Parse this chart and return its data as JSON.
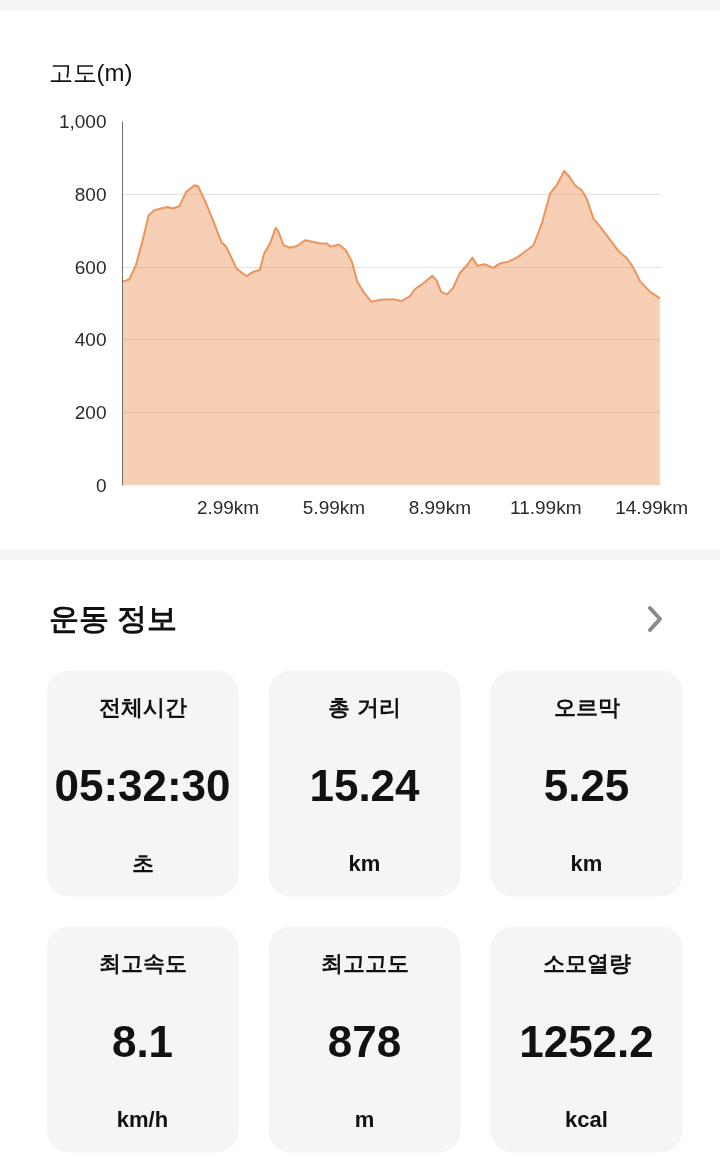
{
  "chart_data": [
    {
      "type": "area",
      "title": "고도(m)",
      "x": [
        0,
        0.19,
        0.38,
        0.57,
        0.74,
        0.9,
        1.09,
        1.28,
        1.42,
        1.61,
        1.8,
        2.04,
        2.14,
        2.33,
        2.56,
        2.8,
        2.94,
        3.23,
        3.51,
        3.7,
        3.89,
        4.01,
        4.18,
        4.34,
        4.42,
        4.56,
        4.75,
        4.94,
        5.18,
        5.41,
        5.6,
        5.79,
        5.89,
        6.13,
        6.32,
        6.5,
        6.65,
        6.84,
        7.05,
        7.28,
        7.66,
        7.9,
        8.13,
        8.28,
        8.51,
        8.78,
        8.89,
        9.03,
        9.19,
        9.36,
        9.55,
        9.74,
        9.91,
        10.05,
        10.26,
        10.5,
        10.69,
        10.93,
        11.17,
        11.4,
        11.64,
        11.88,
        12.11,
        12.3,
        12.51,
        12.63,
        12.82,
        13.01,
        13.15,
        13.34,
        13.53,
        13.82,
        14.05,
        14.29,
        14.43,
        14.67,
        14.95,
        15.22
      ],
      "values": [
        560,
        566,
        605,
        674,
        742,
        756,
        761,
        765,
        761,
        767,
        806,
        825,
        822,
        784,
        729,
        669,
        656,
        596,
        575,
        587,
        592,
        637,
        665,
        708,
        697,
        660,
        653,
        658,
        674,
        669,
        665,
        665,
        656,
        662,
        647,
        615,
        560,
        530,
        505,
        510,
        512,
        507,
        519,
        539,
        555,
        576,
        564,
        532,
        525,
        542,
        583,
        603,
        626,
        604,
        608,
        598,
        610,
        615,
        626,
        642,
        660,
        720,
        802,
        825,
        864,
        852,
        825,
        811,
        788,
        733,
        711,
        674,
        644,
        624,
        605,
        560,
        532,
        514
      ],
      "color": "#eb955c",
      "xlim": [
        0,
        15.24
      ],
      "ylim": [
        0,
        1000
      ],
      "xticks": [
        {
          "value": 2.99,
          "label": "2.99km"
        },
        {
          "value": 5.99,
          "label": "5.99km"
        },
        {
          "value": 8.99,
          "label": "8.99km"
        },
        {
          "value": 11.99,
          "label": "11.99km"
        },
        {
          "value": 14.99,
          "label": "14.99km"
        }
      ],
      "yticks": [
        0,
        200,
        400,
        600,
        800,
        {
          "value": 1000,
          "label": "1,000"
        }
      ],
      "grid": "y"
    },
    {
      "type": "other",
      "title": "운동 정보",
      "annotations": [
        "전체시간",
        "05:32:30",
        "초",
        "총 거리",
        "15.24",
        "km",
        "오르막",
        "5.25",
        "km",
        "최고속도",
        "8.1",
        "km/h",
        "최고고도",
        "878",
        "m",
        "소모열량",
        "1252.2",
        "kcal"
      ]
    }
  ]
}
